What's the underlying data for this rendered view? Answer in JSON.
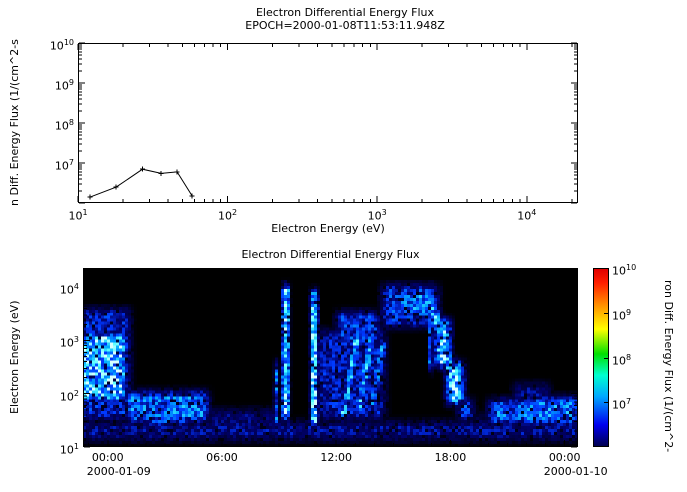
{
  "figure": {
    "bg_color": "#ffffff",
    "fg_color": "#000000"
  },
  "log_base": "10",
  "chart_data": [
    {
      "type": "line",
      "title": "Electron Differential Energy Flux",
      "subtitle": "EPOCH=2000-01-08T11:53:11.948Z",
      "xlabel": "Electron Energy (eV)",
      "ylabel": "n Diff. Energy Flux (1/(cm^2-s",
      "xscale": "log",
      "yscale": "log",
      "xlim": [
        10,
        22000
      ],
      "ylim": [
        1000000,
        10000000000
      ],
      "x_tick_exps": [
        1,
        2,
        3,
        4
      ],
      "y_tick_exps": [
        7,
        8,
        9,
        10
      ],
      "x_energy_ev": [
        12,
        18,
        27,
        36,
        46,
        58
      ],
      "y_flux": [
        1400000,
        2500000,
        7000000,
        5500000,
        6000000,
        1500000
      ]
    },
    {
      "type": "heatmap",
      "title": "Electron Differential Energy Flux",
      "ylabel": "Electron Energy (eV)",
      "yscale": "log",
      "time_range_hours": [
        -1.3,
        24.7
      ],
      "ylim_log": [
        1,
        4.36
      ],
      "y_tick_exps": [
        1,
        2,
        3,
        4
      ],
      "x_ticks": [
        {
          "hour": 0,
          "label": "00:00"
        },
        {
          "hour": 6,
          "label": "06:00"
        },
        {
          "hour": 12,
          "label": "12:00"
        },
        {
          "hour": 18,
          "label": "18:00"
        },
        {
          "hour": 24,
          "label": "00:00"
        }
      ],
      "date_labels": [
        {
          "hour": 0,
          "label": "2000-01-09"
        },
        {
          "hour": 24,
          "label": "2000-01-10"
        }
      ],
      "features": [
        {
          "t": [
            -1.5,
            1.0
          ],
          "le": [
            1.85,
            3.15
          ],
          "v": 0.8
        },
        {
          "t": [
            -1.5,
            1.2
          ],
          "le": [
            1.5,
            3.6
          ],
          "v": 0.45
        },
        {
          "t": [
            -1.5,
            24.8
          ],
          "le": [
            1.12,
            1.48
          ],
          "v": 0.36
        },
        {
          "t": [
            0.9,
            5.3
          ],
          "le": [
            1.45,
            2.05
          ],
          "v": 0.6
        },
        {
          "t": [
            2.0,
            4.2
          ],
          "le": [
            1.35,
            1.8
          ],
          "v": 0.5
        },
        {
          "t": [
            5.3,
            8.9
          ],
          "le": [
            1.28,
            1.7
          ],
          "v": 0.32
        },
        {
          "t": [
            8.75,
            8.95
          ],
          "le": [
            1.4,
            2.6
          ],
          "v": 0.6,
          "mt": 0.1
        },
        {
          "t": [
            9.15,
            9.55
          ],
          "le": [
            1.5,
            4.05
          ],
          "v": 0.85,
          "mt": 0.12
        },
        {
          "t": [
            10.65,
            11.05
          ],
          "le": [
            1.35,
            3.95
          ],
          "v": 0.8,
          "mt": 0.12
        },
        {
          "t": [
            11.0,
            14.6
          ],
          "le": [
            1.5,
            3.2
          ],
          "v": 0.42
        },
        {
          "t": [
            12.1,
            12.55
          ],
          "le": [
            1.5,
            3.1
          ],
          "v": 0.7,
          "mt": 0.15,
          "skew": -0.5
        },
        {
          "t": [
            12.9,
            13.35
          ],
          "le": [
            1.6,
            3.2
          ],
          "v": 0.68,
          "mt": 0.15,
          "skew": -0.5
        },
        {
          "t": [
            13.6,
            14.05
          ],
          "le": [
            1.7,
            3.0
          ],
          "v": 0.6,
          "mt": 0.15,
          "skew": -0.5
        },
        {
          "t": [
            12.0,
            14.3
          ],
          "le": [
            2.9,
            3.55
          ],
          "v": 0.5
        },
        {
          "t": [
            14.4,
            17.4
          ],
          "le": [
            3.25,
            4.05
          ],
          "v": 0.5
        },
        {
          "t": [
            15.2,
            17.2
          ],
          "le": [
            3.4,
            3.95
          ],
          "v": 0.6
        },
        {
          "t": [
            16.85,
            17.05
          ],
          "le": [
            2.4,
            3.7
          ],
          "v": 0.7,
          "mt": 0.1
        },
        {
          "t": [
            17.9,
            18.5
          ],
          "le": [
            2.2,
            3.7
          ],
          "v": 0.8,
          "skew": 0.8
        },
        {
          "t": [
            17.2,
            18.0
          ],
          "le": [
            2.5,
            3.4
          ],
          "v": 0.85
        },
        {
          "t": [
            17.8,
            18.7
          ],
          "le": [
            1.8,
            2.6
          ],
          "v": 0.85
        },
        {
          "t": [
            18.4,
            19.2
          ],
          "le": [
            1.45,
            1.9
          ],
          "v": 0.5
        },
        {
          "t": [
            19.2,
            20.0
          ],
          "le": [
            1.3,
            1.6
          ],
          "v": 0.25
        },
        {
          "t": [
            20.0,
            24.8
          ],
          "le": [
            1.4,
            1.9
          ],
          "v": 0.58
        },
        {
          "t": [
            21.3,
            23.2
          ],
          "le": [
            1.8,
            2.2
          ],
          "v": 0.35
        },
        {
          "t": [
            22.0,
            24.8
          ],
          "le": [
            1.45,
            1.95
          ],
          "v": 0.6
        }
      ]
    }
  ],
  "spectro_colormap": [
    [
      0.0,
      "#000000"
    ],
    [
      0.35,
      "#00006e"
    ],
    [
      0.55,
      "#0038ff"
    ],
    [
      0.75,
      "#00aaff"
    ],
    [
      0.9,
      "#55ffff"
    ],
    [
      1.0,
      "#d8ffff"
    ]
  ],
  "colorbar": {
    "label": "ron Diff. Energy Flux (1/(cm^2-",
    "range_log": [
      6,
      10
    ],
    "tick_exps": [
      7,
      8,
      9,
      10
    ],
    "stops": [
      [
        0.0,
        "#000050"
      ],
      [
        0.12,
        "#0000f0"
      ],
      [
        0.28,
        "#00a8ff"
      ],
      [
        0.4,
        "#00ffd0"
      ],
      [
        0.52,
        "#00e000"
      ],
      [
        0.66,
        "#ffff00"
      ],
      [
        0.8,
        "#ff8c00"
      ],
      [
        0.92,
        "#ff2000"
      ],
      [
        1.0,
        "#e00000"
      ]
    ]
  }
}
